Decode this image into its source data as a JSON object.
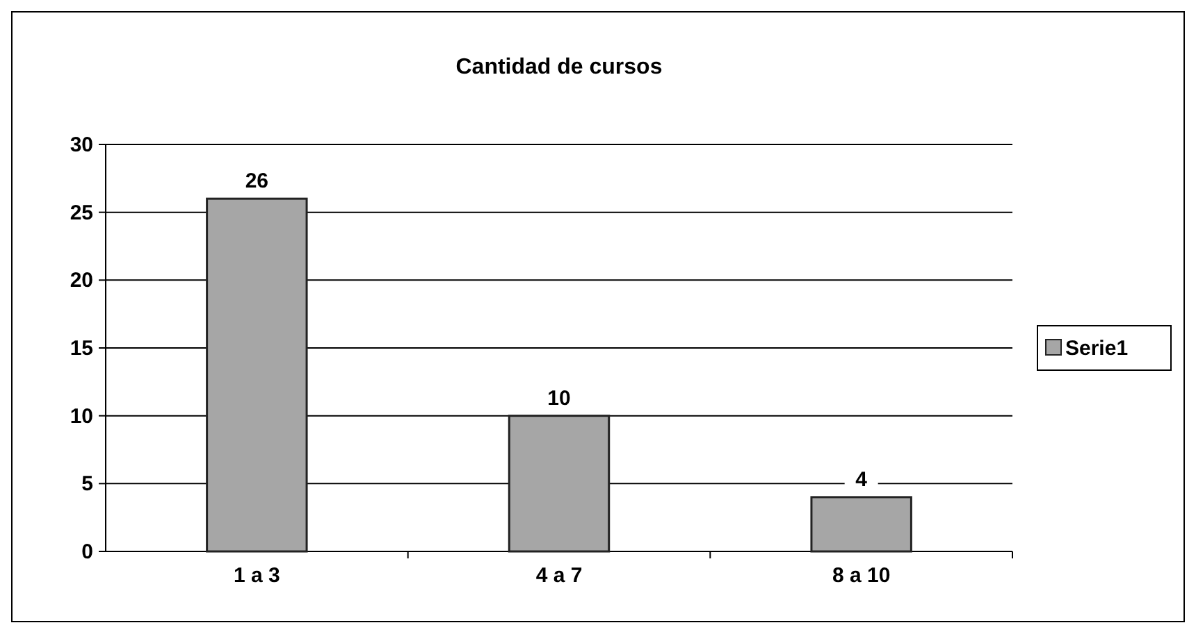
{
  "chart_data": {
    "type": "bar",
    "title": "Cantidad de cursos",
    "categories": [
      "1 a 3",
      "4 a 7",
      "8 a 10"
    ],
    "series": [
      {
        "name": "Serie1",
        "color": "#a6a6a6",
        "values": [
          26,
          10,
          4
        ]
      }
    ],
    "ylim": [
      0,
      30
    ],
    "yticks": [
      0,
      5,
      10,
      15,
      20,
      25,
      30
    ],
    "grid": "y",
    "legend": "right",
    "data_labels": true
  }
}
